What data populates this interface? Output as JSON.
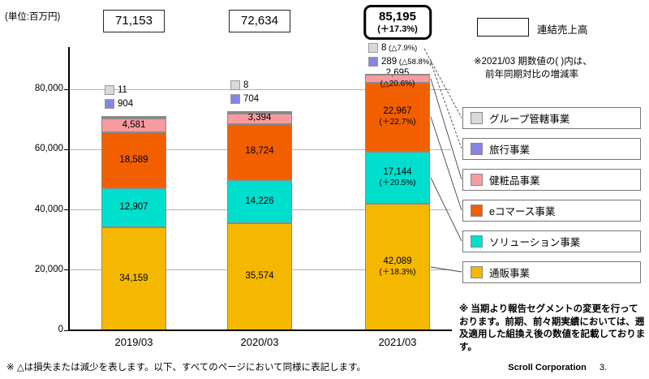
{
  "page": {
    "unit_label": "(単位:百万円)",
    "consolidated_sales_label": "連結売上高",
    "note_right_line1": "※2021/03 期数値の( )内は、",
    "note_right_line2": "前年同期対比の増減率",
    "segment_change_note": "※ 当期より報告セグメントの変更を行っております。前期、前々期実績においては、遡及適用した組換え後の数値を記載しております。",
    "bottom_note": "※ △は損失または減少を表します。以下、すべてのページにおいて同様に表記します。",
    "footer_company": "Scroll Corporation",
    "footer_page": "3."
  },
  "chart_data": {
    "type": "bar",
    "stacked": true,
    "title": "連結売上高",
    "unit": "百万円",
    "categories": [
      "2019/03",
      "2020/03",
      "2021/03"
    ],
    "totals": [
      {
        "label": "71,153",
        "value": 71153
      },
      {
        "label": "72,634",
        "value": 72634
      },
      {
        "label": "85,195",
        "sub": "(＋17.3%)",
        "value": 85195,
        "emphasized": true
      }
    ],
    "yticks": [
      {
        "value": 0,
        "label": "0"
      },
      {
        "value": 20000,
        "label": "20,000"
      },
      {
        "value": 40000,
        "label": "40,000"
      },
      {
        "value": 60000,
        "label": "60,000"
      },
      {
        "value": 80000,
        "label": "80,000"
      }
    ],
    "ylim": [
      0,
      88000
    ],
    "grid": true,
    "legend_position": "right",
    "series": [
      {
        "key": "tsuhan",
        "name": "通販事業",
        "color": "#F5B800",
        "values": [
          34159,
          35574,
          42089
        ],
        "labels": [
          "34,159",
          "35,574",
          "42,089"
        ],
        "subs": [
          null,
          null,
          "(＋18.3%)"
        ]
      },
      {
        "key": "solution",
        "name": "ソリューション事業",
        "color": "#00DFCE",
        "values": [
          12907,
          14226,
          17144
        ],
        "labels": [
          "12,907",
          "14,226",
          "17,144"
        ],
        "subs": [
          null,
          null,
          "(＋20.5%)"
        ]
      },
      {
        "key": "ecommerce",
        "name": "eコマース事業",
        "color": "#F25F00",
        "values": [
          18589,
          18724,
          22967
        ],
        "labels": [
          "18,589",
          "18,724",
          "22,967"
        ],
        "subs": [
          null,
          null,
          "(＋22.7%)"
        ]
      },
      {
        "key": "kenshohin",
        "name": "健粧品事業",
        "color": "#F89B9F",
        "values": [
          4581,
          3394,
          2695
        ],
        "labels": [
          "4,581",
          "3,394",
          "2,695"
        ],
        "subs": [
          null,
          null,
          "(△20.6%)"
        ]
      },
      {
        "key": "travel",
        "name": "旅行事業",
        "color": "#8585E5",
        "values": [
          904,
          704,
          289
        ],
        "labels": [
          "904",
          "704",
          "289"
        ],
        "subs": [
          null,
          null,
          "(△58.8%)"
        ]
      },
      {
        "key": "group",
        "name": "グループ管轄事業",
        "color": "#D9D9D9",
        "values": [
          11,
          8,
          8
        ],
        "labels": [
          "11",
          "8",
          "8"
        ],
        "subs": [
          null,
          null,
          "(△7.9%)"
        ]
      }
    ]
  }
}
